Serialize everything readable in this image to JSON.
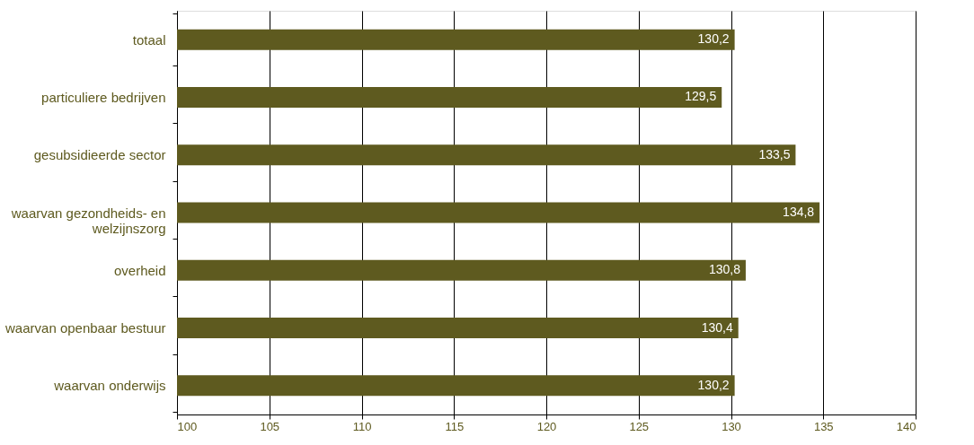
{
  "chart_data": {
    "type": "bar",
    "orientation": "horizontal",
    "categories": [
      "totaal",
      "particuliere bedrijven",
      "gesubsidieerde sector",
      "waarvan gezondheids- en welzijnszorg",
      "overheid",
      "waarvan openbaar bestuur",
      "waarvan onderwijs"
    ],
    "values": [
      130.2,
      129.5,
      133.5,
      134.8,
      130.8,
      130.4,
      130.2
    ],
    "value_labels": [
      "130,2",
      "129,5",
      "133,5",
      "134,8",
      "130,8",
      "130,4",
      "130,2"
    ],
    "color": "#5e5a1f",
    "xlim": [
      100,
      140
    ],
    "xticks": [
      100,
      105,
      110,
      115,
      120,
      125,
      130,
      135,
      140
    ],
    "grid": "x"
  }
}
